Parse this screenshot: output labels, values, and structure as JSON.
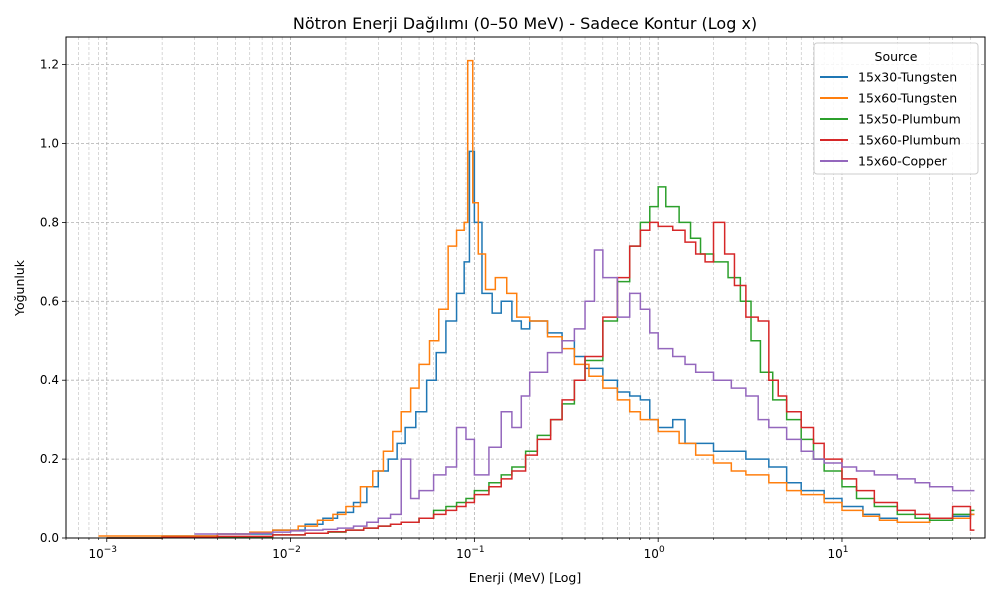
{
  "chart_data": {
    "type": "line",
    "drawstyle": "steps",
    "title": "Nötron Enerji Dağılımı (0–50 MeV) - Sadece Kontur (Log x)",
    "xlabel": "Enerji (MeV) [Log]",
    "ylabel": "Yoğunluk",
    "xscale": "log",
    "xlim": [
      0.0006,
      60
    ],
    "ylim": [
      0,
      1.27
    ],
    "xticks": [
      {
        "value": 0.001,
        "base": "10",
        "exp": "−3"
      },
      {
        "value": 0.01,
        "base": "10",
        "exp": "−2"
      },
      {
        "value": 0.1,
        "base": "10",
        "exp": "−1"
      },
      {
        "value": 1,
        "base": "10",
        "exp": "0"
      },
      {
        "value": 10,
        "base": "10",
        "exp": "1"
      }
    ],
    "yticks": [
      {
        "value": 0.0,
        "label": "0.0"
      },
      {
        "value": 0.2,
        "label": "0.2"
      },
      {
        "value": 0.4,
        "label": "0.4"
      },
      {
        "value": 0.6,
        "label": "0.6"
      },
      {
        "value": 0.8,
        "label": "0.8"
      },
      {
        "value": 1.0,
        "label": "1.0"
      },
      {
        "value": 1.2,
        "label": "1.2"
      }
    ],
    "grid": true,
    "legend": {
      "title": "Source",
      "position": "top-right"
    },
    "series": [
      {
        "name": "15x30-Tungsten",
        "color": "#1f77b4",
        "points": [
          [
            0.001,
            0.0
          ],
          [
            0.002,
            0.005
          ],
          [
            0.004,
            0.01
          ],
          [
            0.008,
            0.02
          ],
          [
            0.012,
            0.035
          ],
          [
            0.015,
            0.05
          ],
          [
            0.018,
            0.065
          ],
          [
            0.022,
            0.09
          ],
          [
            0.026,
            0.13
          ],
          [
            0.03,
            0.17
          ],
          [
            0.034,
            0.2
          ],
          [
            0.038,
            0.24
          ],
          [
            0.042,
            0.28
          ],
          [
            0.048,
            0.32
          ],
          [
            0.055,
            0.4
          ],
          [
            0.062,
            0.47
          ],
          [
            0.07,
            0.55
          ],
          [
            0.08,
            0.62
          ],
          [
            0.088,
            0.7
          ],
          [
            0.094,
            0.98
          ],
          [
            0.1,
            0.8
          ],
          [
            0.11,
            0.62
          ],
          [
            0.125,
            0.57
          ],
          [
            0.14,
            0.6
          ],
          [
            0.16,
            0.55
          ],
          [
            0.18,
            0.53
          ],
          [
            0.2,
            0.55
          ],
          [
            0.25,
            0.52
          ],
          [
            0.3,
            0.5
          ],
          [
            0.35,
            0.46
          ],
          [
            0.4,
            0.43
          ],
          [
            0.5,
            0.4
          ],
          [
            0.6,
            0.37
          ],
          [
            0.7,
            0.36
          ],
          [
            0.8,
            0.35
          ],
          [
            0.9,
            0.3
          ],
          [
            1.0,
            0.28
          ],
          [
            1.2,
            0.3
          ],
          [
            1.4,
            0.24
          ],
          [
            1.7,
            0.24
          ],
          [
            2.0,
            0.22
          ],
          [
            2.5,
            0.22
          ],
          [
            3.0,
            0.2
          ],
          [
            4.0,
            0.18
          ],
          [
            5.0,
            0.14
          ],
          [
            6.0,
            0.12
          ],
          [
            8.0,
            0.1
          ],
          [
            10.0,
            0.08
          ],
          [
            13.0,
            0.06
          ],
          [
            16.0,
            0.05
          ],
          [
            20.0,
            0.04
          ],
          [
            30.0,
            0.05
          ],
          [
            40.0,
            0.055
          ],
          [
            50.0,
            0.06
          ]
        ]
      },
      {
        "name": "15x60-Tungsten",
        "color": "#ff7f0e",
        "points": [
          [
            0.0009,
            0.005
          ],
          [
            0.002,
            0.005
          ],
          [
            0.004,
            0.01
          ],
          [
            0.006,
            0.015
          ],
          [
            0.008,
            0.02
          ],
          [
            0.011,
            0.03
          ],
          [
            0.014,
            0.045
          ],
          [
            0.017,
            0.06
          ],
          [
            0.02,
            0.08
          ],
          [
            0.024,
            0.13
          ],
          [
            0.028,
            0.17
          ],
          [
            0.032,
            0.22
          ],
          [
            0.036,
            0.27
          ],
          [
            0.04,
            0.32
          ],
          [
            0.045,
            0.38
          ],
          [
            0.05,
            0.44
          ],
          [
            0.057,
            0.5
          ],
          [
            0.064,
            0.58
          ],
          [
            0.072,
            0.74
          ],
          [
            0.08,
            0.78
          ],
          [
            0.088,
            0.8
          ],
          [
            0.092,
            1.21
          ],
          [
            0.098,
            0.85
          ],
          [
            0.105,
            0.72
          ],
          [
            0.115,
            0.63
          ],
          [
            0.13,
            0.66
          ],
          [
            0.15,
            0.62
          ],
          [
            0.17,
            0.56
          ],
          [
            0.2,
            0.55
          ],
          [
            0.25,
            0.51
          ],
          [
            0.3,
            0.48
          ],
          [
            0.35,
            0.44
          ],
          [
            0.42,
            0.41
          ],
          [
            0.5,
            0.38
          ],
          [
            0.6,
            0.35
          ],
          [
            0.7,
            0.32
          ],
          [
            0.8,
            0.3
          ],
          [
            1.0,
            0.27
          ],
          [
            1.3,
            0.24
          ],
          [
            1.6,
            0.21
          ],
          [
            2.0,
            0.19
          ],
          [
            2.5,
            0.17
          ],
          [
            3.0,
            0.16
          ],
          [
            4.0,
            0.14
          ],
          [
            5.0,
            0.12
          ],
          [
            6.0,
            0.11
          ],
          [
            8.0,
            0.09
          ],
          [
            10.0,
            0.07
          ],
          [
            13.0,
            0.055
          ],
          [
            16.0,
            0.045
          ],
          [
            20.0,
            0.04
          ],
          [
            30.0,
            0.045
          ],
          [
            40.0,
            0.05
          ],
          [
            50.0,
            0.06
          ]
        ]
      },
      {
        "name": "15x50-Plumbum",
        "color": "#2ca02c",
        "points": [
          [
            0.001,
            0.0
          ],
          [
            0.002,
            0.002
          ],
          [
            0.004,
            0.003
          ],
          [
            0.008,
            0.008
          ],
          [
            0.012,
            0.012
          ],
          [
            0.016,
            0.015
          ],
          [
            0.02,
            0.02
          ],
          [
            0.025,
            0.025
          ],
          [
            0.03,
            0.03
          ],
          [
            0.035,
            0.035
          ],
          [
            0.04,
            0.04
          ],
          [
            0.05,
            0.05
          ],
          [
            0.06,
            0.07
          ],
          [
            0.07,
            0.08
          ],
          [
            0.08,
            0.09
          ],
          [
            0.09,
            0.1
          ],
          [
            0.1,
            0.12
          ],
          [
            0.12,
            0.14
          ],
          [
            0.14,
            0.16
          ],
          [
            0.16,
            0.18
          ],
          [
            0.19,
            0.22
          ],
          [
            0.22,
            0.26
          ],
          [
            0.26,
            0.3
          ],
          [
            0.3,
            0.34
          ],
          [
            0.35,
            0.4
          ],
          [
            0.4,
            0.45
          ],
          [
            0.5,
            0.55
          ],
          [
            0.6,
            0.65
          ],
          [
            0.7,
            0.74
          ],
          [
            0.8,
            0.8
          ],
          [
            0.9,
            0.84
          ],
          [
            1.0,
            0.89
          ],
          [
            1.1,
            0.84
          ],
          [
            1.3,
            0.8
          ],
          [
            1.5,
            0.76
          ],
          [
            1.7,
            0.72
          ],
          [
            2.0,
            0.7
          ],
          [
            2.4,
            0.66
          ],
          [
            2.8,
            0.6
          ],
          [
            3.2,
            0.5
          ],
          [
            3.6,
            0.42
          ],
          [
            4.2,
            0.35
          ],
          [
            5.0,
            0.3
          ],
          [
            6.0,
            0.25
          ],
          [
            7.0,
            0.2
          ],
          [
            8.0,
            0.17
          ],
          [
            10.0,
            0.13
          ],
          [
            12.0,
            0.1
          ],
          [
            15.0,
            0.08
          ],
          [
            20.0,
            0.06
          ],
          [
            25.0,
            0.05
          ],
          [
            30.0,
            0.045
          ],
          [
            40.0,
            0.06
          ],
          [
            50.0,
            0.07
          ]
        ]
      },
      {
        "name": "15x60-Plumbum",
        "color": "#d62728",
        "points": [
          [
            0.001,
            0.0
          ],
          [
            0.002,
            0.002
          ],
          [
            0.004,
            0.004
          ],
          [
            0.008,
            0.008
          ],
          [
            0.012,
            0.012
          ],
          [
            0.016,
            0.016
          ],
          [
            0.02,
            0.02
          ],
          [
            0.025,
            0.025
          ],
          [
            0.03,
            0.03
          ],
          [
            0.035,
            0.035
          ],
          [
            0.04,
            0.04
          ],
          [
            0.05,
            0.05
          ],
          [
            0.06,
            0.06
          ],
          [
            0.07,
            0.07
          ],
          [
            0.08,
            0.08
          ],
          [
            0.09,
            0.09
          ],
          [
            0.1,
            0.11
          ],
          [
            0.12,
            0.13
          ],
          [
            0.14,
            0.15
          ],
          [
            0.16,
            0.17
          ],
          [
            0.19,
            0.21
          ],
          [
            0.22,
            0.25
          ],
          [
            0.26,
            0.3
          ],
          [
            0.3,
            0.35
          ],
          [
            0.35,
            0.4
          ],
          [
            0.4,
            0.46
          ],
          [
            0.5,
            0.56
          ],
          [
            0.6,
            0.66
          ],
          [
            0.7,
            0.74
          ],
          [
            0.8,
            0.78
          ],
          [
            0.9,
            0.8
          ],
          [
            1.0,
            0.79
          ],
          [
            1.2,
            0.78
          ],
          [
            1.4,
            0.75
          ],
          [
            1.6,
            0.72
          ],
          [
            1.8,
            0.7
          ],
          [
            2.0,
            0.8
          ],
          [
            2.3,
            0.72
          ],
          [
            2.6,
            0.64
          ],
          [
            3.0,
            0.56
          ],
          [
            3.5,
            0.55
          ],
          [
            4.0,
            0.4
          ],
          [
            4.5,
            0.36
          ],
          [
            5.0,
            0.32
          ],
          [
            6.0,
            0.28
          ],
          [
            7.0,
            0.24
          ],
          [
            8.0,
            0.2
          ],
          [
            10.0,
            0.15
          ],
          [
            12.0,
            0.12
          ],
          [
            15.0,
            0.09
          ],
          [
            20.0,
            0.07
          ],
          [
            25.0,
            0.06
          ],
          [
            30.0,
            0.05
          ],
          [
            40.0,
            0.08
          ],
          [
            50.0,
            0.02
          ]
        ]
      },
      {
        "name": "15x60-Copper",
        "color": "#9467bd",
        "points": [
          [
            0.003,
            0.01
          ],
          [
            0.004,
            0.01
          ],
          [
            0.006,
            0.012
          ],
          [
            0.008,
            0.015
          ],
          [
            0.01,
            0.018
          ],
          [
            0.012,
            0.02
          ],
          [
            0.015,
            0.022
          ],
          [
            0.018,
            0.025
          ],
          [
            0.022,
            0.03
          ],
          [
            0.026,
            0.04
          ],
          [
            0.03,
            0.05
          ],
          [
            0.035,
            0.06
          ],
          [
            0.04,
            0.2
          ],
          [
            0.045,
            0.1
          ],
          [
            0.05,
            0.12
          ],
          [
            0.06,
            0.16
          ],
          [
            0.07,
            0.18
          ],
          [
            0.08,
            0.28
          ],
          [
            0.09,
            0.25
          ],
          [
            0.1,
            0.16
          ],
          [
            0.12,
            0.23
          ],
          [
            0.14,
            0.32
          ],
          [
            0.16,
            0.28
          ],
          [
            0.18,
            0.36
          ],
          [
            0.2,
            0.42
          ],
          [
            0.25,
            0.47
          ],
          [
            0.3,
            0.5
          ],
          [
            0.35,
            0.53
          ],
          [
            0.4,
            0.6
          ],
          [
            0.45,
            0.73
          ],
          [
            0.5,
            0.66
          ],
          [
            0.6,
            0.56
          ],
          [
            0.7,
            0.62
          ],
          [
            0.8,
            0.58
          ],
          [
            0.9,
            0.52
          ],
          [
            1.0,
            0.48
          ],
          [
            1.2,
            0.46
          ],
          [
            1.4,
            0.44
          ],
          [
            1.6,
            0.42
          ],
          [
            2.0,
            0.4
          ],
          [
            2.5,
            0.38
          ],
          [
            3.0,
            0.36
          ],
          [
            3.5,
            0.3
          ],
          [
            4.0,
            0.28
          ],
          [
            5.0,
            0.25
          ],
          [
            6.0,
            0.22
          ],
          [
            7.0,
            0.2
          ],
          [
            8.0,
            0.19
          ],
          [
            10.0,
            0.18
          ],
          [
            12.0,
            0.17
          ],
          [
            15.0,
            0.16
          ],
          [
            20.0,
            0.15
          ],
          [
            25.0,
            0.14
          ],
          [
            30.0,
            0.13
          ],
          [
            40.0,
            0.12
          ],
          [
            50.0,
            0.12
          ]
        ]
      }
    ]
  }
}
